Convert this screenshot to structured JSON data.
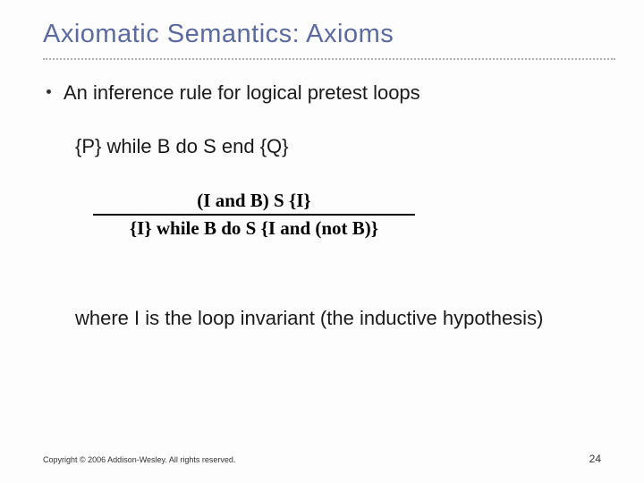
{
  "title": "Axiomatic Semantics: Axioms",
  "bullet": "An inference rule for logical pretest loops",
  "loop_form": "{P} while B do S end {Q}",
  "rule": {
    "premise": "(I and B) S {I}",
    "conclusion": "{I} while B do S {I and (not B)}"
  },
  "explanation": "where I is the loop invariant (the inductive hypothesis)",
  "copyright": "Copyright © 2006 Addison-Wesley. All rights reserved.",
  "page_number": "24",
  "colors": {
    "title_color": "#5b6aa0",
    "text_color": "#1a1a1a",
    "dot_color": "#b0b0b0",
    "background": "#fdfdfd"
  },
  "fontsize": {
    "title": 29,
    "body": 22,
    "rule": 21,
    "footer_small": 9,
    "footer_page": 12
  }
}
